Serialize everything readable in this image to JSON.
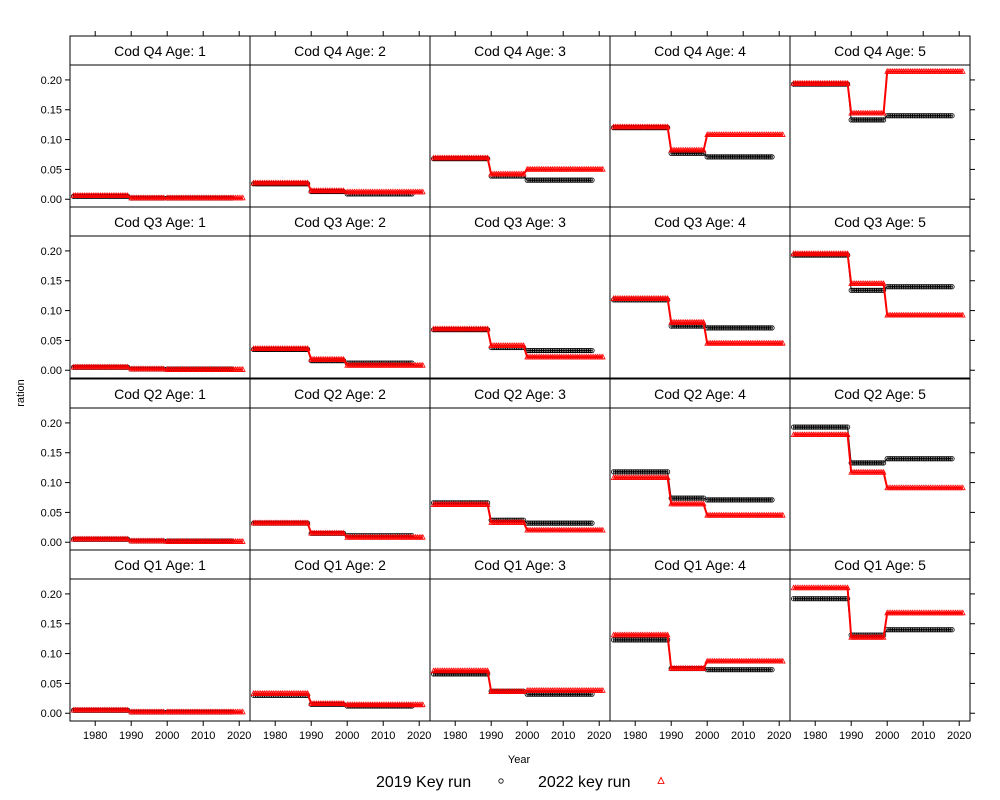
{
  "chart_data": {
    "type": "line",
    "layout": "lattice 5 columns x 4 rows",
    "xlabel": "Year",
    "ylabel": "ration",
    "xlim": [
      1973,
      2023
    ],
    "ylim": [
      -0.013,
      0.225
    ],
    "x_ticks": [
      1980,
      1990,
      2000,
      2010,
      2020
    ],
    "y_ticks": [
      0.0,
      0.05,
      0.1,
      0.15,
      0.2
    ],
    "y_tick_labels": [
      "0.00",
      "0.05",
      "0.10",
      "0.15",
      "0.20"
    ],
    "legend": {
      "placement": "bottom",
      "entries": [
        {
          "label": "2019 Key run",
          "symbol": "circle",
          "color": "#000000"
        },
        {
          "label": "2022 key run",
          "symbol": "triangle",
          "color": "#ff0000"
        }
      ]
    },
    "x_segments": [
      [
        1974,
        1989
      ],
      [
        1990,
        1999
      ],
      [
        2000,
        2018
      ]
    ],
    "x_segments_2022": [
      [
        1974,
        1989
      ],
      [
        1990,
        1999
      ],
      [
        2000,
        2021
      ]
    ],
    "panels": [
      {
        "title": "Cod Q4 Age: 1",
        "row": 0,
        "col": 0,
        "run2019": [
          0.005,
          0.002,
          0.002
        ],
        "run2022": [
          0.006,
          0.002,
          0.002
        ]
      },
      {
        "title": "Cod Q4 Age: 2",
        "row": 0,
        "col": 1,
        "run2019": [
          0.026,
          0.013,
          0.009
        ],
        "run2022": [
          0.027,
          0.014,
          0.012
        ]
      },
      {
        "title": "Cod Q4 Age: 3",
        "row": 0,
        "col": 2,
        "run2019": [
          0.068,
          0.039,
          0.032
        ],
        "run2022": [
          0.069,
          0.042,
          0.05
        ]
      },
      {
        "title": "Cod Q4 Age: 4",
        "row": 0,
        "col": 3,
        "run2019": [
          0.12,
          0.077,
          0.071
        ],
        "run2022": [
          0.121,
          0.082,
          0.108
        ]
      },
      {
        "title": "Cod Q4 Age: 5",
        "row": 0,
        "col": 4,
        "run2019": [
          0.193,
          0.133,
          0.14
        ],
        "run2022": [
          0.194,
          0.144,
          0.214
        ]
      },
      {
        "title": "Cod Q3 Age: 1",
        "row": 1,
        "col": 0,
        "run2019": [
          0.005,
          0.002,
          0.002
        ],
        "run2022": [
          0.005,
          0.002,
          0.001
        ]
      },
      {
        "title": "Cod Q3 Age: 2",
        "row": 1,
        "col": 1,
        "run2019": [
          0.035,
          0.016,
          0.012
        ],
        "run2022": [
          0.036,
          0.018,
          0.008
        ]
      },
      {
        "title": "Cod Q3 Age: 3",
        "row": 1,
        "col": 2,
        "run2019": [
          0.068,
          0.038,
          0.033
        ],
        "run2022": [
          0.069,
          0.041,
          0.022
        ]
      },
      {
        "title": "Cod Q3 Age: 4",
        "row": 1,
        "col": 3,
        "run2019": [
          0.118,
          0.074,
          0.071
        ],
        "run2022": [
          0.12,
          0.08,
          0.045
        ]
      },
      {
        "title": "Cod Q3 Age: 5",
        "row": 1,
        "col": 4,
        "run2019": [
          0.193,
          0.134,
          0.14
        ],
        "run2022": [
          0.195,
          0.145,
          0.092
        ]
      },
      {
        "title": "Cod Q2 Age: 1",
        "row": 2,
        "col": 0,
        "run2019": [
          0.005,
          0.002,
          0.002
        ],
        "run2022": [
          0.005,
          0.002,
          0.001
        ]
      },
      {
        "title": "Cod Q2 Age: 2",
        "row": 2,
        "col": 1,
        "run2019": [
          0.032,
          0.015,
          0.011
        ],
        "run2022": [
          0.032,
          0.015,
          0.008
        ]
      },
      {
        "title": "Cod Q2 Age: 3",
        "row": 2,
        "col": 2,
        "run2019": [
          0.066,
          0.037,
          0.032
        ],
        "run2022": [
          0.063,
          0.033,
          0.02
        ]
      },
      {
        "title": "Cod Q2 Age: 4",
        "row": 2,
        "col": 3,
        "run2019": [
          0.118,
          0.074,
          0.071
        ],
        "run2022": [
          0.108,
          0.064,
          0.045
        ]
      },
      {
        "title": "Cod Q2 Age: 5",
        "row": 2,
        "col": 4,
        "run2019": [
          0.193,
          0.133,
          0.14
        ],
        "run2022": [
          0.18,
          0.117,
          0.091
        ]
      },
      {
        "title": "Cod Q1 Age: 1",
        "row": 3,
        "col": 0,
        "run2019": [
          0.005,
          0.002,
          0.002
        ],
        "run2022": [
          0.005,
          0.002,
          0.002
        ]
      },
      {
        "title": "Cod Q1 Age: 2",
        "row": 3,
        "col": 1,
        "run2019": [
          0.03,
          0.015,
          0.012
        ],
        "run2022": [
          0.033,
          0.016,
          0.014
        ]
      },
      {
        "title": "Cod Q1 Age: 3",
        "row": 3,
        "col": 2,
        "run2019": [
          0.066,
          0.037,
          0.032
        ],
        "run2022": [
          0.071,
          0.036,
          0.038
        ]
      },
      {
        "title": "Cod Q1 Age: 4",
        "row": 3,
        "col": 3,
        "run2019": [
          0.123,
          0.075,
          0.073
        ],
        "run2022": [
          0.131,
          0.075,
          0.087
        ]
      },
      {
        "title": "Cod Q1 Age: 5",
        "row": 3,
        "col": 4,
        "run2019": [
          0.192,
          0.131,
          0.14
        ],
        "run2022": [
          0.21,
          0.127,
          0.168
        ]
      }
    ]
  }
}
